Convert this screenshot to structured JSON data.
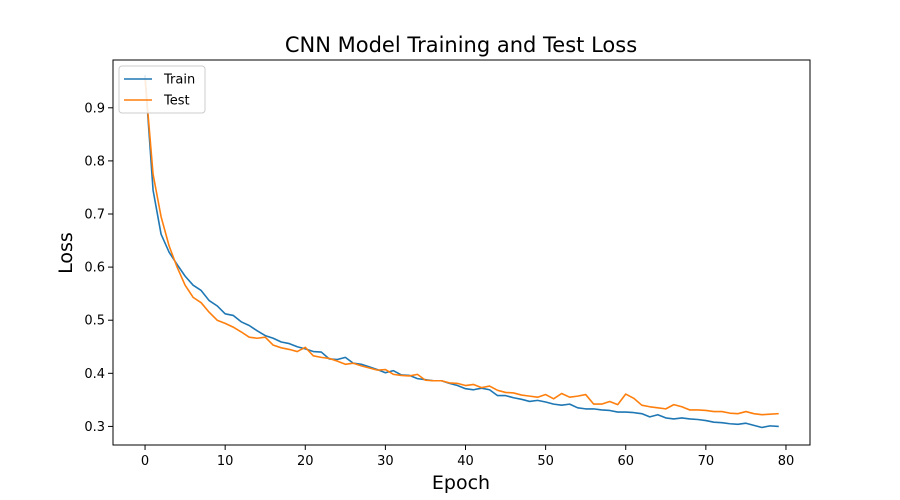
{
  "chart_data": {
    "type": "line",
    "title": "CNN Model Training and Test Loss",
    "xlabel": "Epoch",
    "ylabel": "Loss",
    "xlim": [
      -4,
      83
    ],
    "ylim": [
      0.265,
      0.99
    ],
    "xticks": [
      0,
      10,
      20,
      30,
      40,
      50,
      60,
      70,
      80
    ],
    "yticks": [
      0.3,
      0.4,
      0.5,
      0.6,
      0.7,
      0.8,
      0.9
    ],
    "xtick_labels": [
      "0",
      "10",
      "20",
      "30",
      "40",
      "50",
      "60",
      "70",
      "80"
    ],
    "ytick_labels": [
      "0.3",
      "0.4",
      "0.5",
      "0.6",
      "0.7",
      "0.8",
      "0.9"
    ],
    "grid": false,
    "legend_position": "upper-left",
    "series": [
      {
        "name": "Train",
        "color": "#1f77b4",
        "values": [
          0.96,
          0.745,
          0.662,
          0.628,
          0.605,
          0.583,
          0.566,
          0.556,
          0.537,
          0.527,
          0.512,
          0.509,
          0.497,
          0.49,
          0.48,
          0.471,
          0.466,
          0.459,
          0.456,
          0.45,
          0.446,
          0.441,
          0.44,
          0.427,
          0.426,
          0.43,
          0.419,
          0.417,
          0.412,
          0.407,
          0.401,
          0.405,
          0.397,
          0.396,
          0.39,
          0.388,
          0.386,
          0.386,
          0.381,
          0.377,
          0.371,
          0.369,
          0.372,
          0.369,
          0.358,
          0.358,
          0.354,
          0.351,
          0.347,
          0.349,
          0.346,
          0.342,
          0.34,
          0.342,
          0.335,
          0.333,
          0.333,
          0.331,
          0.33,
          0.327,
          0.327,
          0.326,
          0.324,
          0.318,
          0.322,
          0.316,
          0.314,
          0.316,
          0.314,
          0.313,
          0.311,
          0.308,
          0.307,
          0.305,
          0.304,
          0.306,
          0.302,
          0.298,
          0.301,
          0.3
        ]
      },
      {
        "name": "Test",
        "color": "#ff7f0e",
        "values": [
          0.955,
          0.775,
          0.695,
          0.64,
          0.6,
          0.566,
          0.543,
          0.533,
          0.515,
          0.5,
          0.494,
          0.487,
          0.478,
          0.468,
          0.466,
          0.468,
          0.453,
          0.448,
          0.445,
          0.441,
          0.449,
          0.433,
          0.43,
          0.428,
          0.423,
          0.417,
          0.419,
          0.414,
          0.41,
          0.406,
          0.407,
          0.398,
          0.396,
          0.395,
          0.398,
          0.387,
          0.386,
          0.386,
          0.382,
          0.381,
          0.377,
          0.379,
          0.373,
          0.376,
          0.368,
          0.364,
          0.363,
          0.359,
          0.357,
          0.355,
          0.36,
          0.352,
          0.362,
          0.355,
          0.357,
          0.36,
          0.342,
          0.342,
          0.347,
          0.341,
          0.361,
          0.353,
          0.34,
          0.337,
          0.335,
          0.333,
          0.341,
          0.337,
          0.331,
          0.331,
          0.33,
          0.328,
          0.328,
          0.325,
          0.324,
          0.328,
          0.324,
          0.322,
          0.323,
          0.324
        ]
      }
    ]
  }
}
